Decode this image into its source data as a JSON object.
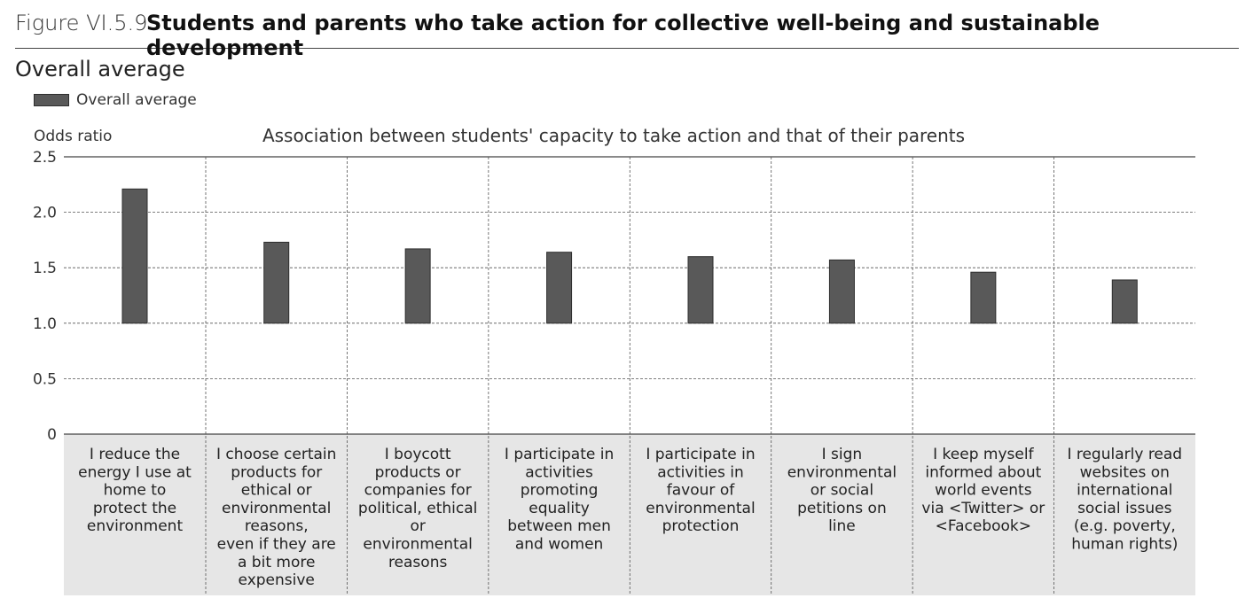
{
  "figure": {
    "number": "Figure VI.5.9",
    "title": "Students and parents who take action for collective well-being and sustainable development"
  },
  "section": {
    "title": "Overall average"
  },
  "legend": {
    "items": [
      {
        "label": "Overall average",
        "color": "#595959"
      }
    ]
  },
  "chart_data": {
    "type": "bar",
    "title": "Association between students' capacity to take action and that of their parents",
    "ylabel": "Odds ratio",
    "baseline": 1.0,
    "ylim": [
      0,
      2.5
    ],
    "yticks": [
      {
        "value": 0,
        "label": "0"
      },
      {
        "value": 0.5,
        "label": "0.5"
      },
      {
        "value": 1.0,
        "label": "1.0"
      },
      {
        "value": 1.5,
        "label": "1.5"
      },
      {
        "value": 2.0,
        "label": "2.0"
      },
      {
        "value": 2.5,
        "label": "2.5"
      }
    ],
    "grid": true,
    "legend_position": "top-left",
    "categories": [
      [
        "I reduce the",
        "energy I use at",
        "home to",
        "protect the",
        "environment"
      ],
      [
        "I choose certain",
        "products for",
        "ethical or",
        "environmental",
        "reasons,",
        "even if they are",
        "a bit more",
        "expensive"
      ],
      [
        "I boycott",
        "products or",
        "companies for",
        "political, ethical",
        "or",
        "environmental",
        "reasons"
      ],
      [
        "I participate in",
        "activities",
        "promoting",
        "equality",
        "between men",
        "and women"
      ],
      [
        "I participate in",
        "activities in",
        "favour of",
        "environmental",
        "protection"
      ],
      [
        "I sign",
        "environmental",
        "or social",
        "petitions on",
        "line"
      ],
      [
        "I keep myself",
        "informed about",
        "world events",
        "via <Twitter> or",
        "<Facebook>"
      ],
      [
        "I regularly read",
        "websites on",
        "international",
        "social issues",
        "(e.g. poverty,",
        "human rights)"
      ]
    ],
    "series": [
      {
        "name": "Overall average",
        "color": "#595959",
        "values": [
          2.21,
          1.73,
          1.67,
          1.64,
          1.6,
          1.57,
          1.46,
          1.39
        ]
      }
    ],
    "colors": {
      "bar": "#595959",
      "bar_stroke": "#2e2e2e",
      "category_band": "#e6e6e6",
      "grid": "#555555"
    }
  }
}
